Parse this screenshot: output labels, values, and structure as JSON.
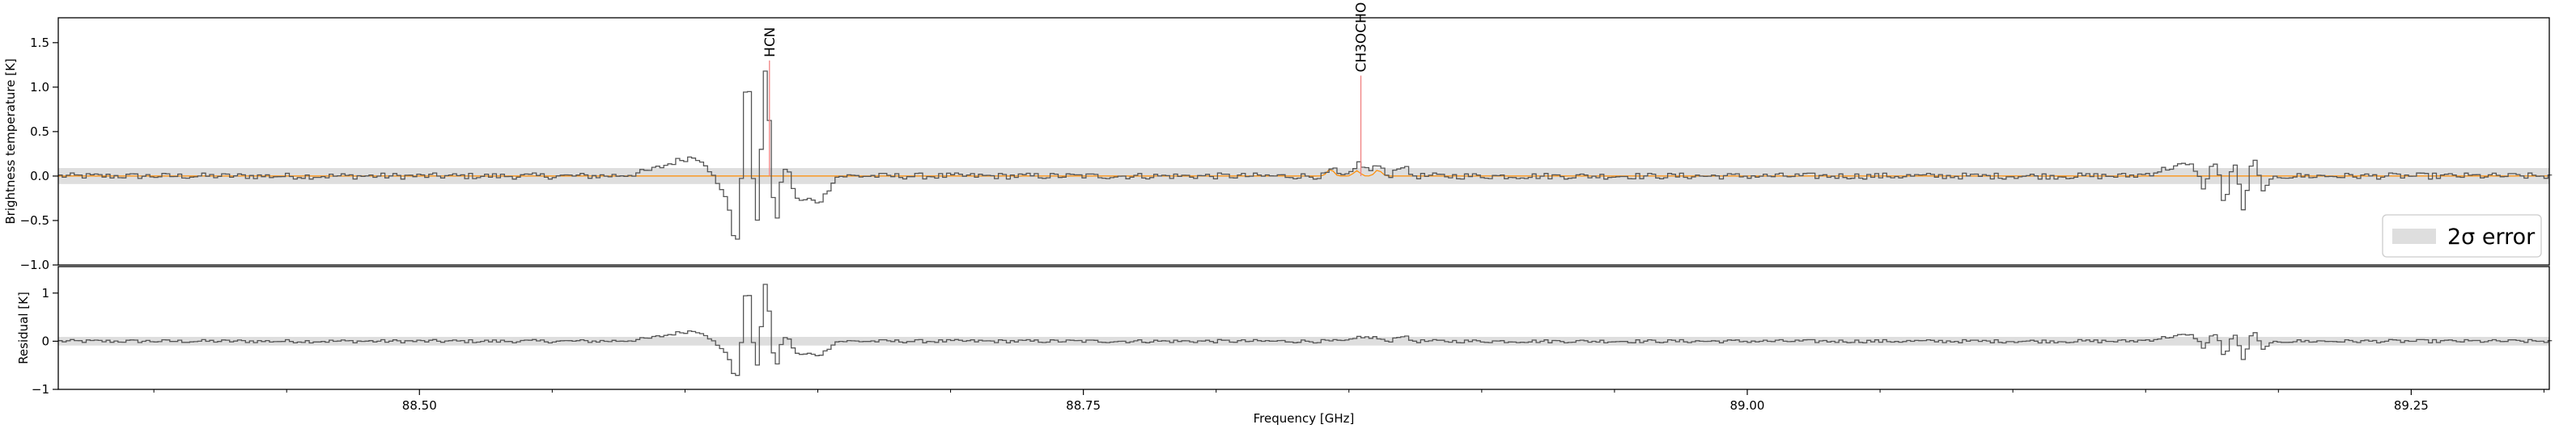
{
  "chart_data": [
    {
      "type": "line",
      "panel": "spectrum",
      "xlabel": "",
      "ylabel": "Brightness temperature [K]",
      "xlim": [
        88.364,
        89.302
      ],
      "ylim": [
        -1.0,
        1.78
      ],
      "yticks": [
        -1.0,
        -0.5,
        0.0,
        0.5,
        1.0,
        1.5
      ],
      "ytick_labels": [
        "−1.0",
        "−0.5",
        "0.0",
        "0.5",
        "1.0",
        "1.5"
      ],
      "grid": false,
      "error_band": {
        "label": "2σ error",
        "lower": -0.09,
        "upper": 0.09,
        "color": "#d3d3d3"
      },
      "model_color": "#ff8c00",
      "observed_color": "#555555",
      "features": [
        {
          "center": 88.605,
          "width": 0.012,
          "amp": 0.22
        },
        {
          "center": 88.614,
          "width": 0.004,
          "amp": -0.35
        },
        {
          "center": 88.619,
          "width": 0.0018,
          "amp": -0.8
        },
        {
          "center": 88.6225,
          "width": 0.0016,
          "amp": 1.2
        },
        {
          "center": 88.6265,
          "width": 0.0014,
          "amp": -0.75
        },
        {
          "center": 88.6295,
          "width": 0.0014,
          "amp": 1.25
        },
        {
          "center": 88.6335,
          "width": 0.0014,
          "amp": -0.6
        },
        {
          "center": 88.637,
          "width": 0.003,
          "amp": 0.15
        },
        {
          "center": 88.642,
          "width": 0.0025,
          "amp": -0.3
        },
        {
          "center": 88.648,
          "width": 0.0025,
          "amp": -0.25
        },
        {
          "center": 88.652,
          "width": 0.002,
          "amp": -0.15
        },
        {
          "center": 88.854,
          "width": 0.002,
          "amp": 0.1
        },
        {
          "center": 88.859,
          "width": 0.0015,
          "amp": 0.08
        },
        {
          "center": 88.869,
          "width": 0.002,
          "amp": 0.12
        },
        {
          "center": 89.164,
          "width": 0.008,
          "amp": 0.12
        },
        {
          "center": 89.171,
          "width": 0.0015,
          "amp": -0.2
        },
        {
          "center": 89.176,
          "width": 0.0015,
          "amp": 0.15
        },
        {
          "center": 89.179,
          "width": 0.0015,
          "amp": -0.35
        },
        {
          "center": 89.183,
          "width": 0.0015,
          "amp": 0.2
        },
        {
          "center": 89.186,
          "width": 0.0015,
          "amp": -0.4
        },
        {
          "center": 89.19,
          "width": 0.0015,
          "amp": 0.2
        },
        {
          "center": 89.194,
          "width": 0.002,
          "amp": -0.15
        }
      ],
      "model_features": [
        {
          "center": 88.843,
          "width": 0.0012,
          "amp": 0.08
        },
        {
          "center": 88.853,
          "width": 0.0012,
          "amp": 0.06
        },
        {
          "center": 88.861,
          "width": 0.0012,
          "amp": 0.07
        }
      ],
      "line_markers": [
        {
          "molecule": "HCN",
          "frequency": 88.6318,
          "height": 1.3,
          "color": "#f08080"
        },
        {
          "molecule": "CH3OCHO",
          "frequency": 88.8545,
          "height": 1.13,
          "color": "#f08080"
        }
      ],
      "legend": {
        "entries": [
          "2σ error"
        ],
        "placement": "lower-right"
      }
    },
    {
      "type": "line",
      "panel": "residual",
      "xlabel": "Frequency [GHz]",
      "ylabel": "Residual [K]",
      "xlim": [
        88.364,
        89.302
      ],
      "ylim": [
        -1.0,
        1.55
      ],
      "yticks": [
        -1,
        0,
        1
      ],
      "ytick_labels": [
        "−1",
        "0",
        "1"
      ],
      "xticks": [
        88.5,
        88.75,
        89.0,
        89.25
      ],
      "xtick_labels": [
        "88.50",
        "88.75",
        "89.00",
        "89.25"
      ],
      "grid": false,
      "error_band": {
        "lower": -0.09,
        "upper": 0.09,
        "color": "#d3d3d3"
      }
    }
  ]
}
